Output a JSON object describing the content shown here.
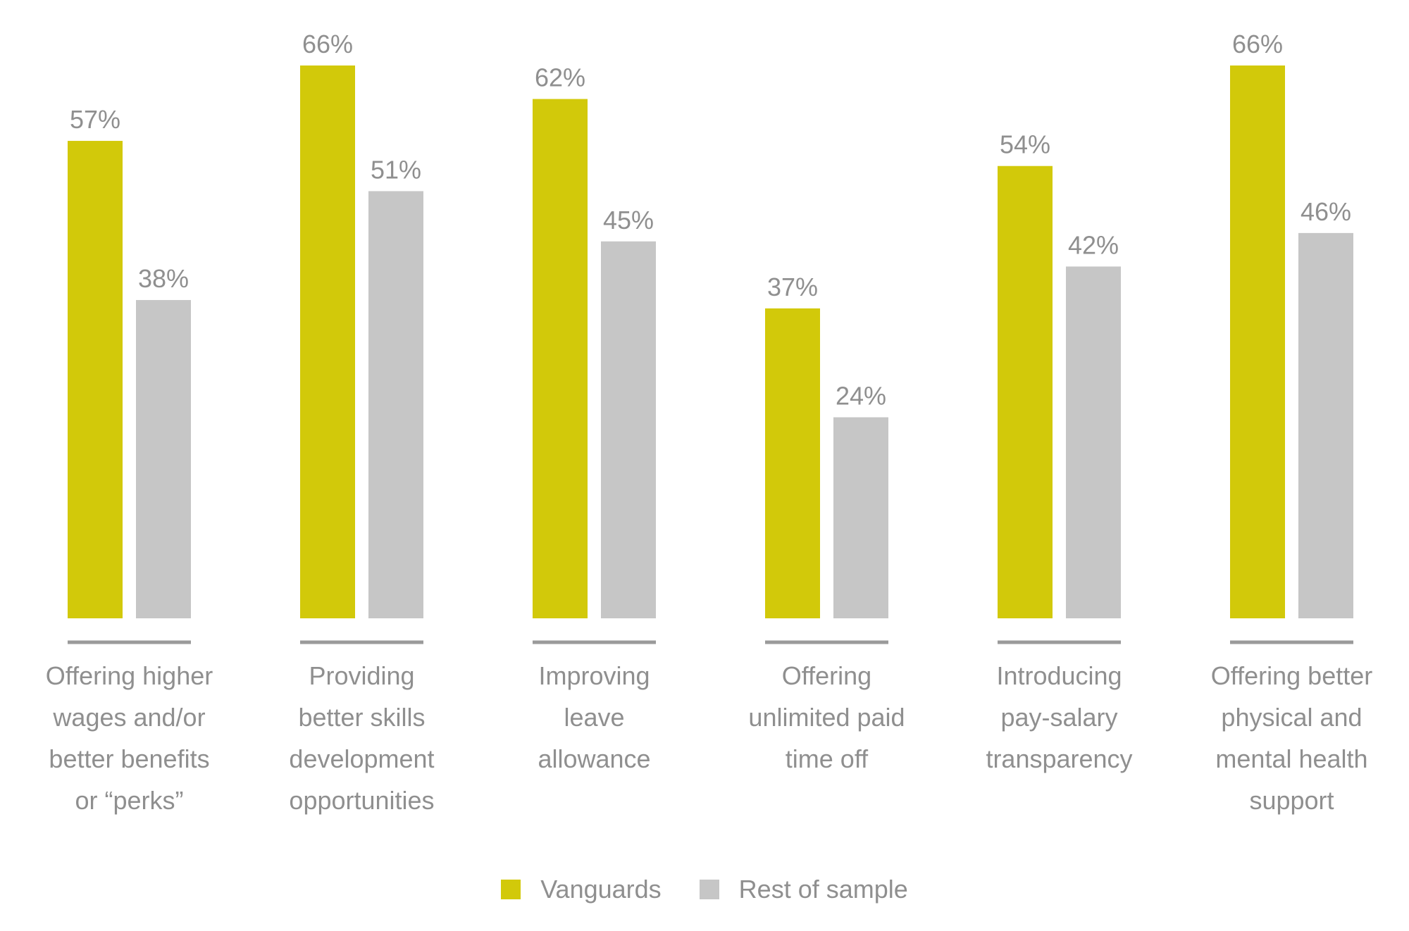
{
  "chart_data": {
    "type": "bar",
    "categories": [
      [
        "Offering higher",
        "wages and/or",
        "better benefits",
        "or “perks”"
      ],
      [
        "Providing",
        "better skills",
        "development",
        "opportunities"
      ],
      [
        "Improving",
        "leave",
        "allowance"
      ],
      [
        "Offering",
        "unlimited paid",
        "time off"
      ],
      [
        "Introducing",
        "pay-salary",
        "transparency"
      ],
      [
        "Offering better",
        "physical and",
        "mental health",
        "support"
      ]
    ],
    "series": [
      {
        "name": "Vanguards",
        "color": "#d2c90a",
        "values": [
          57,
          66,
          62,
          37,
          54,
          66
        ],
        "labels": [
          "57%",
          "66%",
          "62%",
          "37%",
          "54%",
          "66%"
        ]
      },
      {
        "name": "Rest of sample",
        "color": "#c6c6c6",
        "values": [
          38,
          51,
          45,
          24,
          42,
          46
        ],
        "labels": [
          "38%",
          "51%",
          "45%",
          "24%",
          "42%",
          "46%"
        ]
      }
    ],
    "ylim": [
      0,
      66
    ],
    "grid": false,
    "legend_position": "bottom-center",
    "axis_color": "#9a9a9a"
  }
}
